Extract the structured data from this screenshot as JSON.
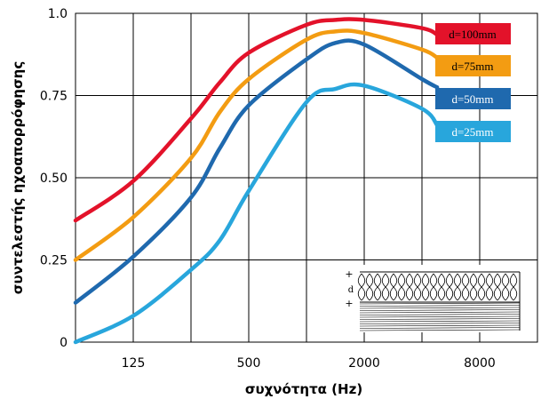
{
  "chart_data": {
    "type": "line",
    "y_label": "συντελεστής ηχοαπορρόφησης",
    "x_label": "συχνότητα (Hz)",
    "x": [
      62.5,
      125,
      250,
      353.6,
      500,
      1000,
      1414,
      2000,
      4000,
      4800
    ],
    "log_x": true,
    "xlim": [
      62.5,
      16000
    ],
    "xticks": [
      125,
      500,
      2000,
      8000
    ],
    "xminor": [
      250,
      1000,
      4000
    ],
    "ylim": [
      0,
      1
    ],
    "yticks": [
      0,
      0.25,
      {
        "value": 0.5,
        "label": "0.50"
      },
      0.75,
      {
        "value": 1,
        "label": "1.0"
      }
    ],
    "grid": true,
    "inset_label": "d",
    "series": [
      {
        "name": "d=100mm",
        "color": "#e3122a",
        "values": [
          0.37,
          0.49,
          0.68,
          0.79,
          0.88,
          0.965,
          0.98,
          0.98,
          0.955,
          0.935
        ]
      },
      {
        "name": "d=75mm",
        "color": "#f39c12",
        "values": [
          0.25,
          0.38,
          0.56,
          0.7,
          0.8,
          0.92,
          0.945,
          0.94,
          0.89,
          0.865
        ]
      },
      {
        "name": "d=50mm",
        "color": "#1f69ae",
        "values": [
          0.12,
          0.26,
          0.44,
          0.59,
          0.72,
          0.86,
          0.91,
          0.905,
          0.8,
          0.775
        ]
      },
      {
        "name": "d=25mm",
        "color": "#28a6dc",
        "values": [
          0.0,
          0.08,
          0.22,
          0.31,
          0.46,
          0.73,
          0.77,
          0.78,
          0.71,
          0.66
        ]
      }
    ]
  }
}
